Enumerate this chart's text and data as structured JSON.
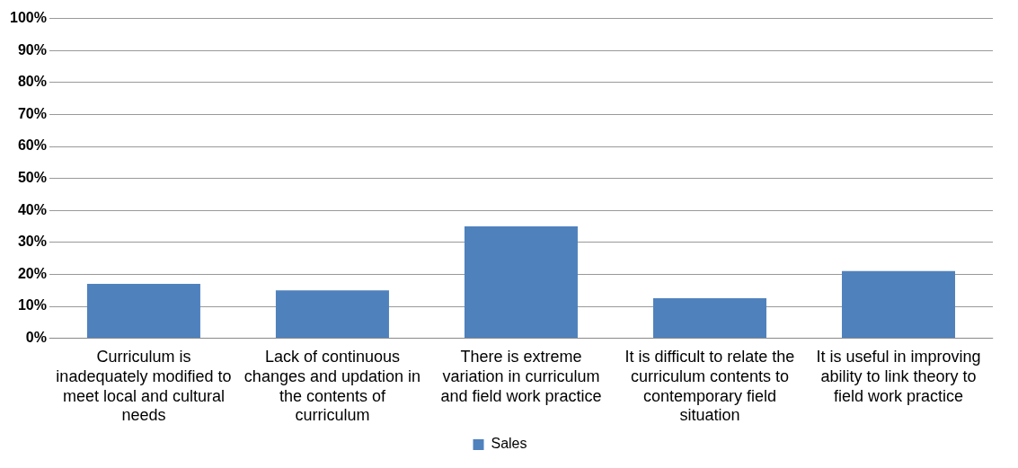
{
  "chart_data": {
    "type": "bar",
    "categories": [
      "Curriculum is inadequately modified to meet local and cultural needs",
      "Lack of continuous changes and updation in the contents of curriculum",
      "There is extreme variation in curriculum and field work practice",
      "It is difficult to relate the curriculum contents to contemporary field situation",
      "It is useful in improving ability to link theory to field work practice"
    ],
    "series": [
      {
        "name": "Sales",
        "color": "#4f81bd",
        "values": [
          17,
          15,
          35,
          12.5,
          21
        ]
      }
    ],
    "ylim": [
      0,
      100
    ],
    "yticks": [
      {
        "value": 0,
        "label": "0%"
      },
      {
        "value": 10,
        "label": "10%"
      },
      {
        "value": 20,
        "label": "20%"
      },
      {
        "value": 30,
        "label": "30%"
      },
      {
        "value": 40,
        "label": "40%"
      },
      {
        "value": 50,
        "label": "50%"
      },
      {
        "value": 60,
        "label": "60%"
      },
      {
        "value": 70,
        "label": "70%"
      },
      {
        "value": 80,
        "label": "80%"
      },
      {
        "value": 90,
        "label": "90%"
      },
      {
        "value": 100,
        "label": "100%"
      }
    ],
    "grid": "y",
    "legend": "bottom"
  }
}
